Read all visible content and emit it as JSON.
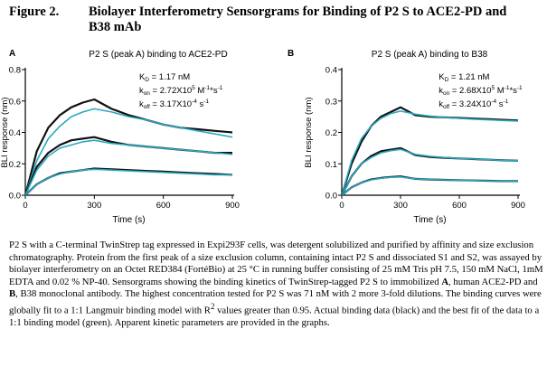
{
  "figure": {
    "title_num": "Figure 2.",
    "title_line1": "Biolayer Interferometry Sensorgrams for Binding of P2 S to ACE2-PD and",
    "title_line2": "B38 mAb"
  },
  "chart_data": [
    {
      "panel_letter": "A",
      "type": "line",
      "title": "P2 S (peak A) binding to ACE2-PD",
      "xlabel": "Time (s)",
      "ylabel": "BLI response (nm)",
      "xlim": [
        0,
        900
      ],
      "ylim": [
        0,
        0.8
      ],
      "xticks": [
        0,
        300,
        600,
        900
      ],
      "xtick_labels": [
        "0",
        "300",
        "600",
        "900"
      ],
      "yticks": [
        0,
        0.2,
        0.4,
        0.6,
        0.8
      ],
      "ytick_labels": [
        "0.0",
        "0.2",
        "0.4",
        "0.6",
        "0.8"
      ],
      "grid": false,
      "kinetics": {
        "kd_label": "K",
        "kd_sub": "D",
        "kd_value": "= 1.17 nM",
        "kon_label": "k",
        "kon_sub": "on",
        "kon_value": "= 2.72X10",
        "kon_exp": "5",
        "kon_unit": "M",
        "kon_unit_exp": "-1",
        "kon_unit2": "*s",
        "kon_unit2_exp": "-1",
        "koff_label": "k",
        "koff_sub": "off",
        "koff_value": "= 3.17X10",
        "koff_exp": "-4",
        "koff_unit": "s",
        "koff_unit_exp": "-1"
      },
      "series": [
        {
          "x": [
            0,
            50,
            100,
            150,
            200,
            250,
            300,
            375,
            450,
            525,
            600,
            675,
            750,
            825,
            900
          ],
          "data": [
            0.0,
            0.28,
            0.43,
            0.51,
            0.56,
            0.59,
            0.61,
            0.55,
            0.51,
            0.48,
            0.45,
            0.43,
            0.42,
            0.41,
            0.4
          ],
          "fit": [
            0.0,
            0.22,
            0.36,
            0.44,
            0.5,
            0.53,
            0.55,
            0.53,
            0.5,
            0.48,
            0.45,
            0.43,
            0.41,
            0.39,
            0.37
          ]
        },
        {
          "x": [
            0,
            50,
            100,
            150,
            200,
            250,
            300,
            375,
            450,
            525,
            600,
            675,
            750,
            825,
            900
          ],
          "data": [
            0.0,
            0.18,
            0.27,
            0.32,
            0.35,
            0.36,
            0.37,
            0.34,
            0.32,
            0.31,
            0.3,
            0.29,
            0.28,
            0.27,
            0.27
          ],
          "fit": [
            0.0,
            0.16,
            0.25,
            0.3,
            0.32,
            0.34,
            0.35,
            0.33,
            0.32,
            0.31,
            0.3,
            0.29,
            0.28,
            0.27,
            0.26
          ]
        },
        {
          "x": [
            0,
            50,
            100,
            150,
            200,
            250,
            300,
            375,
            450,
            525,
            600,
            675,
            750,
            825,
            900
          ],
          "data": [
            0.0,
            0.07,
            0.11,
            0.14,
            0.15,
            0.16,
            0.17,
            0.165,
            0.16,
            0.155,
            0.15,
            0.145,
            0.14,
            0.135,
            0.13
          ],
          "fit": [
            0.0,
            0.07,
            0.11,
            0.135,
            0.15,
            0.16,
            0.165,
            0.16,
            0.155,
            0.15,
            0.145,
            0.14,
            0.135,
            0.13,
            0.13
          ]
        }
      ]
    },
    {
      "panel_letter": "B",
      "type": "line",
      "title": "P2 S (peak A) binding to B38",
      "xlabel": "Time (s)",
      "ylabel": "BLI response (nm)",
      "xlim": [
        0,
        900
      ],
      "ylim": [
        0,
        0.4
      ],
      "xticks": [
        0,
        300,
        600,
        900
      ],
      "xtick_labels": [
        "0",
        "300",
        "600",
        "900"
      ],
      "yticks": [
        0,
        0.1,
        0.2,
        0.3,
        0.4
      ],
      "ytick_labels": [
        "0.0",
        "0.1",
        "0.2",
        "0.3",
        "0.4"
      ],
      "grid": false,
      "kinetics": {
        "kd_label": "K",
        "kd_sub": "D",
        "kd_value": "= 1.21 nM",
        "kon_label": "k",
        "kon_sub": "on",
        "kon_value": "= 2.68X10",
        "kon_exp": "5",
        "kon_unit": "M",
        "kon_unit_exp": "-1",
        "kon_unit2": "*s",
        "kon_unit2_exp": "-1",
        "koff_label": "k",
        "koff_sub": "off",
        "koff_value": "= 3.24X10",
        "koff_exp": "-4",
        "koff_unit": "s",
        "koff_unit_exp": "-1"
      },
      "series": [
        {
          "x": [
            0,
            50,
            100,
            150,
            200,
            250,
            300,
            375,
            450,
            525,
            600,
            675,
            750,
            825,
            900
          ],
          "data": [
            0.0,
            0.1,
            0.17,
            0.22,
            0.25,
            0.265,
            0.28,
            0.255,
            0.25,
            0.248,
            0.246,
            0.244,
            0.242,
            0.24,
            0.238
          ],
          "fit": [
            0.0,
            0.11,
            0.18,
            0.22,
            0.245,
            0.26,
            0.268,
            0.258,
            0.252,
            0.248,
            0.245,
            0.242,
            0.24,
            0.238,
            0.236
          ]
        },
        {
          "x": [
            0,
            50,
            100,
            150,
            200,
            250,
            300,
            375,
            450,
            525,
            600,
            675,
            750,
            825,
            900
          ],
          "data": [
            0.0,
            0.06,
            0.1,
            0.125,
            0.14,
            0.145,
            0.15,
            0.128,
            0.122,
            0.119,
            0.117,
            0.115,
            0.113,
            0.111,
            0.11
          ],
          "fit": [
            0.0,
            0.06,
            0.1,
            0.12,
            0.135,
            0.142,
            0.146,
            0.13,
            0.124,
            0.12,
            0.117,
            0.115,
            0.113,
            0.111,
            0.11
          ]
        },
        {
          "x": [
            0,
            50,
            100,
            150,
            200,
            250,
            300,
            375,
            450,
            525,
            600,
            675,
            750,
            825,
            900
          ],
          "data": [
            0.0,
            0.025,
            0.04,
            0.05,
            0.055,
            0.058,
            0.06,
            0.052,
            0.05,
            0.049,
            0.048,
            0.047,
            0.046,
            0.045,
            0.045
          ],
          "fit": [
            0.0,
            0.025,
            0.04,
            0.049,
            0.054,
            0.057,
            0.058,
            0.052,
            0.05,
            0.049,
            0.048,
            0.047,
            0.046,
            0.045,
            0.045
          ]
        }
      ]
    }
  ],
  "colors": {
    "data_line": "#111111",
    "fit_line": "#2aa9c0",
    "axis": "#000000"
  },
  "caption": {
    "p1": "P2 S with a C-terminal TwinStrep tag expressed in Expi293F cells, was detergent solubilized and purified by affinity and size exclusion chromatography. Protein from the first peak of a size exclusion column, containing intact P2 S and dissociated S1 and S2, was assayed by biolayer interferometry on an Octet RED384 (FortéBio) at 25 °C in running buffer consisting of 25 mM Tris pH 7.5, 150 mM NaCl, 1mM EDTA and 0.02 % NP-40. Sensorgrams showing the binding kinetics of TwinStrep-tagged P2 S to immobilized ",
    "bold_a": "A",
    "p2": ", human ACE2-PD and ",
    "bold_b": "B",
    "p3": ", B38 monoclonal antibody. The highest concentration tested for P2 S was 71 nM with 2 more 3-fold dilutions. The binding curves were globally fit to a 1:1 Langmuir binding model with R",
    "sup": "2",
    "p4": " values greater than 0.95. Actual binding data (black) and the best fit of the data to a 1:1 binding model (green). Apparent kinetic parameters are provided in the graphs."
  }
}
